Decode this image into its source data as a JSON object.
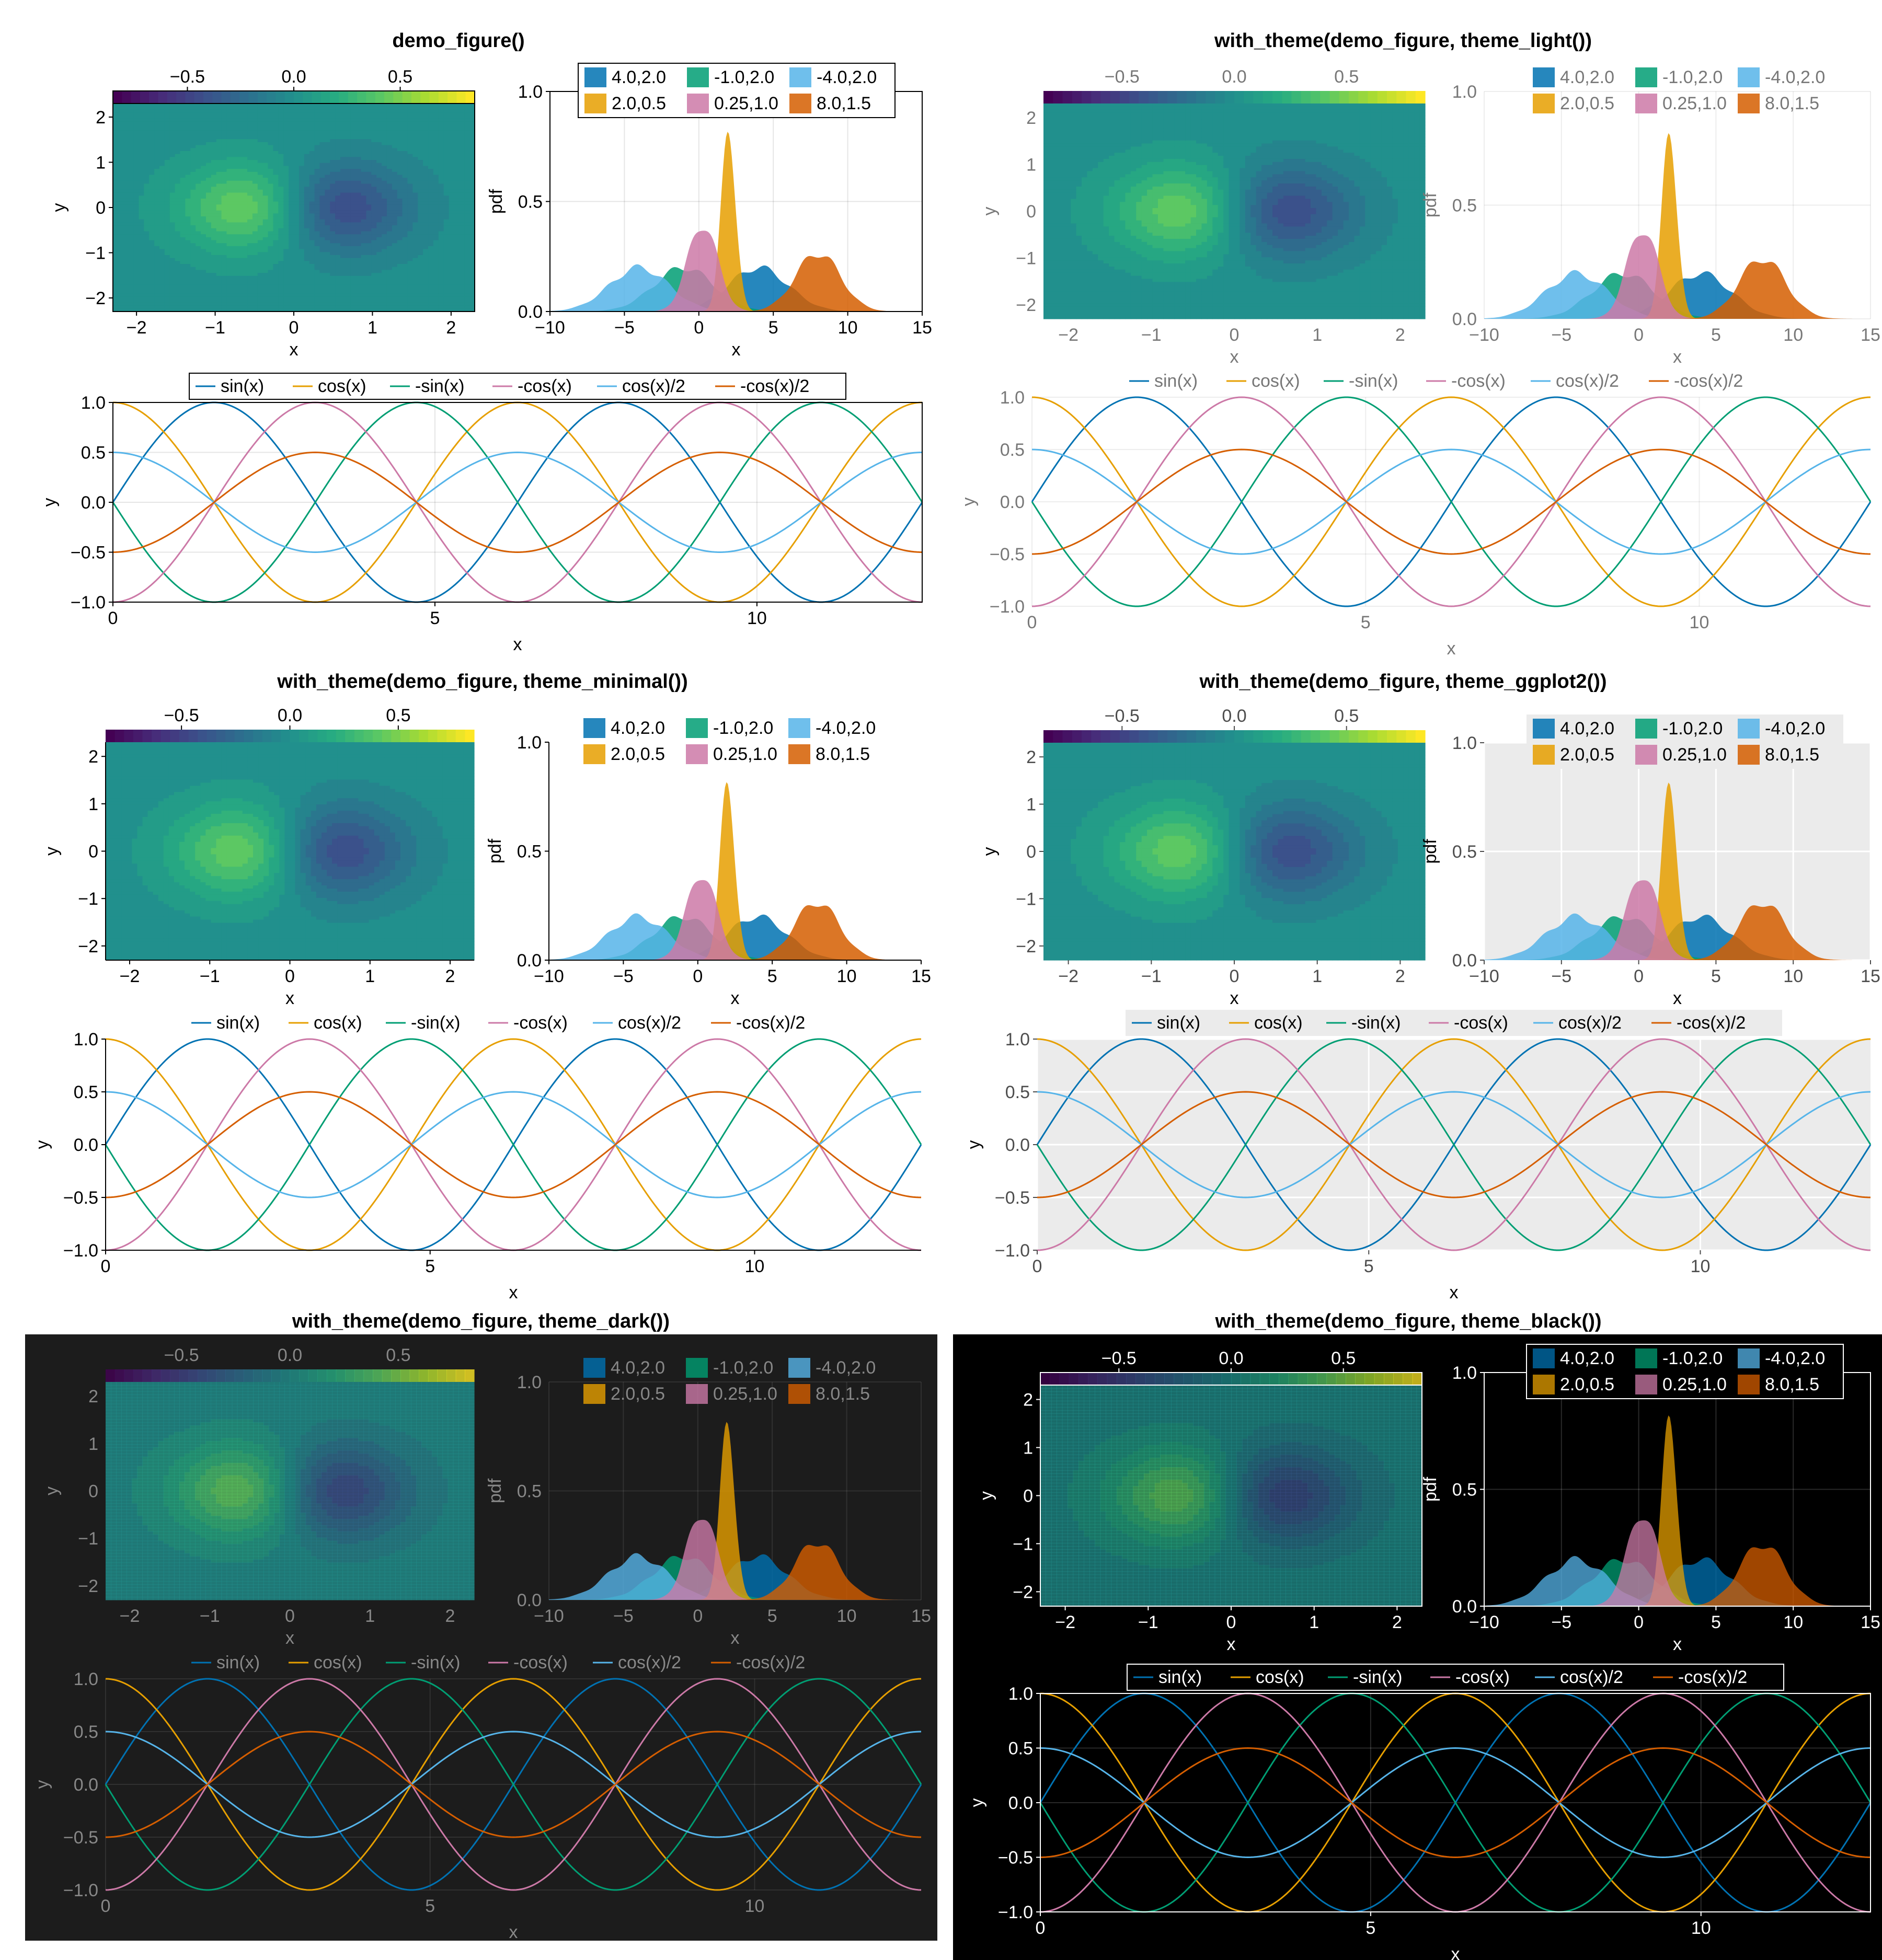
{
  "palette": {
    "series": [
      "#0072b2",
      "#e69f00",
      "#009e73",
      "#cc79a7",
      "#56b4e9",
      "#d55e00"
    ],
    "density_fills": [
      "#0072b2",
      "#009e73",
      "#56b4e9",
      "#e69f00",
      "#cc79a7",
      "#d55e00"
    ],
    "viridis": [
      "#440154",
      "#472c7a",
      "#3b518b",
      "#2c718e",
      "#21908d",
      "#27ad81",
      "#5cc863",
      "#aadc32",
      "#fde725"
    ]
  },
  "panels": [
    {
      "title": "demo_figure()",
      "theme": "default"
    },
    {
      "title": "with_theme(demo_figure, theme_light())",
      "theme": "light"
    },
    {
      "title": "with_theme(demo_figure, theme_minimal())",
      "theme": "minimal"
    },
    {
      "title": "with_theme(demo_figure, theme_ggplot2())",
      "theme": "ggplot2"
    },
    {
      "title": "with_theme(demo_figure, theme_dark())",
      "theme": "dark"
    },
    {
      "title": "with_theme(demo_figure, theme_black())",
      "theme": "black"
    }
  ],
  "chart_data": [
    {
      "type": "heatmap",
      "name": "contour",
      "function": "-x * exp(-(x^2 + y^2))",
      "xlabel": "x",
      "ylabel": "y",
      "xlim": [
        -2.3,
        2.3
      ],
      "ylim": [
        -2.3,
        2.3
      ],
      "xticks": [
        "−2",
        "−1",
        "0",
        "1",
        "2"
      ],
      "xtick_values": [
        -2,
        -1,
        0,
        1,
        2
      ],
      "yticks": [
        "−2",
        "−1",
        "0",
        "1",
        "2"
      ],
      "ytick_values": [
        -2,
        -1,
        0,
        1,
        2
      ],
      "colorbar": {
        "range": [
          -0.85,
          0.85
        ],
        "ticks": [
          "−0.5",
          "0.0",
          "0.5"
        ],
        "tick_values": [
          -0.5,
          0,
          0.5
        ],
        "colormap": "viridis"
      }
    },
    {
      "type": "area",
      "name": "density",
      "xlabel": "x",
      "ylabel": "pdf",
      "xlim": [
        -10,
        15
      ],
      "ylim": [
        0,
        1.0
      ],
      "xticks": [
        "−10",
        "−5",
        "0",
        "5",
        "10",
        "15"
      ],
      "xtick_values": [
        -10,
        -5,
        0,
        5,
        10,
        15
      ],
      "yticks": [
        "0.0",
        "0.5",
        "1.0"
      ],
      "ytick_values": [
        0,
        0.5,
        1.0
      ],
      "series": [
        {
          "name": "4.0,2.0",
          "mean": 4.0,
          "std": 2.0
        },
        {
          "name": "-1.0,2.0",
          "mean": -1.0,
          "std": 2.0
        },
        {
          "name": "-4.0,2.0",
          "mean": -4.0,
          "std": 2.0
        },
        {
          "name": "2.0,0.5",
          "mean": 2.0,
          "std": 0.5
        },
        {
          "name": "0.25,1.0",
          "mean": 0.25,
          "std": 1.0
        },
        {
          "name": "8.0,1.5",
          "mean": 8.0,
          "std": 1.5
        }
      ]
    },
    {
      "type": "line",
      "name": "trig",
      "xlabel": "x",
      "ylabel": "y",
      "xlim": [
        0,
        12.566
      ],
      "ylim": [
        -1.0,
        1.0
      ],
      "xticks": [
        "0",
        "5",
        "10"
      ],
      "xtick_values": [
        0,
        5,
        10
      ],
      "yticks": [
        "−1.0",
        "−0.5",
        "0.0",
        "0.5",
        "1.0"
      ],
      "ytick_values": [
        -1,
        -0.5,
        0,
        0.5,
        1
      ],
      "series": [
        {
          "name": "sin(x)",
          "expr": "sin"
        },
        {
          "name": "cos(x)",
          "expr": "cos"
        },
        {
          "name": "-sin(x)",
          "expr": "nsin"
        },
        {
          "name": "-cos(x)",
          "expr": "ncos"
        },
        {
          "name": "cos(x)/2",
          "expr": "hcos"
        },
        {
          "name": "-cos(x)/2",
          "expr": "nhcos"
        }
      ]
    }
  ]
}
